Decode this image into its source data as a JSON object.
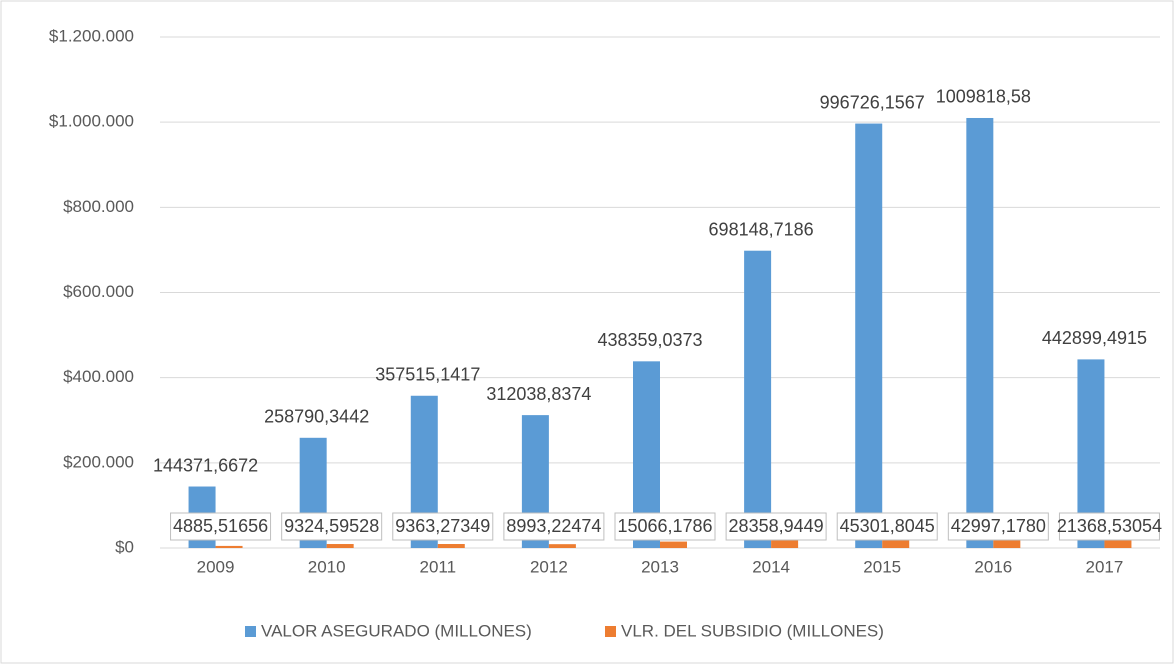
{
  "chart_data": {
    "type": "bar",
    "categories": [
      "2009",
      "2010",
      "2011",
      "2012",
      "2013",
      "2014",
      "2015",
      "2016",
      "2017"
    ],
    "series": [
      {
        "name": "VALOR ASEGURADO (MILLONES)",
        "color": "#5b9bd5",
        "values": [
          144371.6672,
          258790.3442,
          357515.1417,
          312038.8374,
          438359.0373,
          698148.7186,
          996726.1567,
          1009818.58,
          442899.4915
        ],
        "value_labels": [
          "144371,6672",
          "258790,3442",
          "357515,1417",
          "312038,8374",
          "438359,0373",
          "698148,7186",
          "996726,1567",
          "1009818,58",
          "442899,4915"
        ]
      },
      {
        "name": "VLR. DEL SUBSIDIO (MILLONES)",
        "color": "#ed7d31",
        "values": [
          4885.51656,
          9324.59528,
          9363.27349,
          8993.22474,
          15066.1786,
          28358.9449,
          45301.8045,
          42997.178,
          21368.53054
        ],
        "value_labels": [
          "4885,51656",
          "9324,59528",
          "9363,27349",
          "8993,22474",
          "15066,1786",
          "28358,9449",
          "45301,8045",
          "42997,1780",
          "21368,53054"
        ]
      }
    ],
    "ylim": [
      0,
      1200000
    ],
    "yticks": [
      {
        "value": 0,
        "label": "$0"
      },
      {
        "value": 200000,
        "label": "$200.000"
      },
      {
        "value": 400000,
        "label": "$400.000"
      },
      {
        "value": 600000,
        "label": "$600.000"
      },
      {
        "value": 800000,
        "label": "$800.000"
      },
      {
        "value": 1000000,
        "label": "$1.000.000"
      },
      {
        "value": 1200000,
        "label": "$1.200.000"
      }
    ],
    "grid": true,
    "legend": "bottom"
  }
}
